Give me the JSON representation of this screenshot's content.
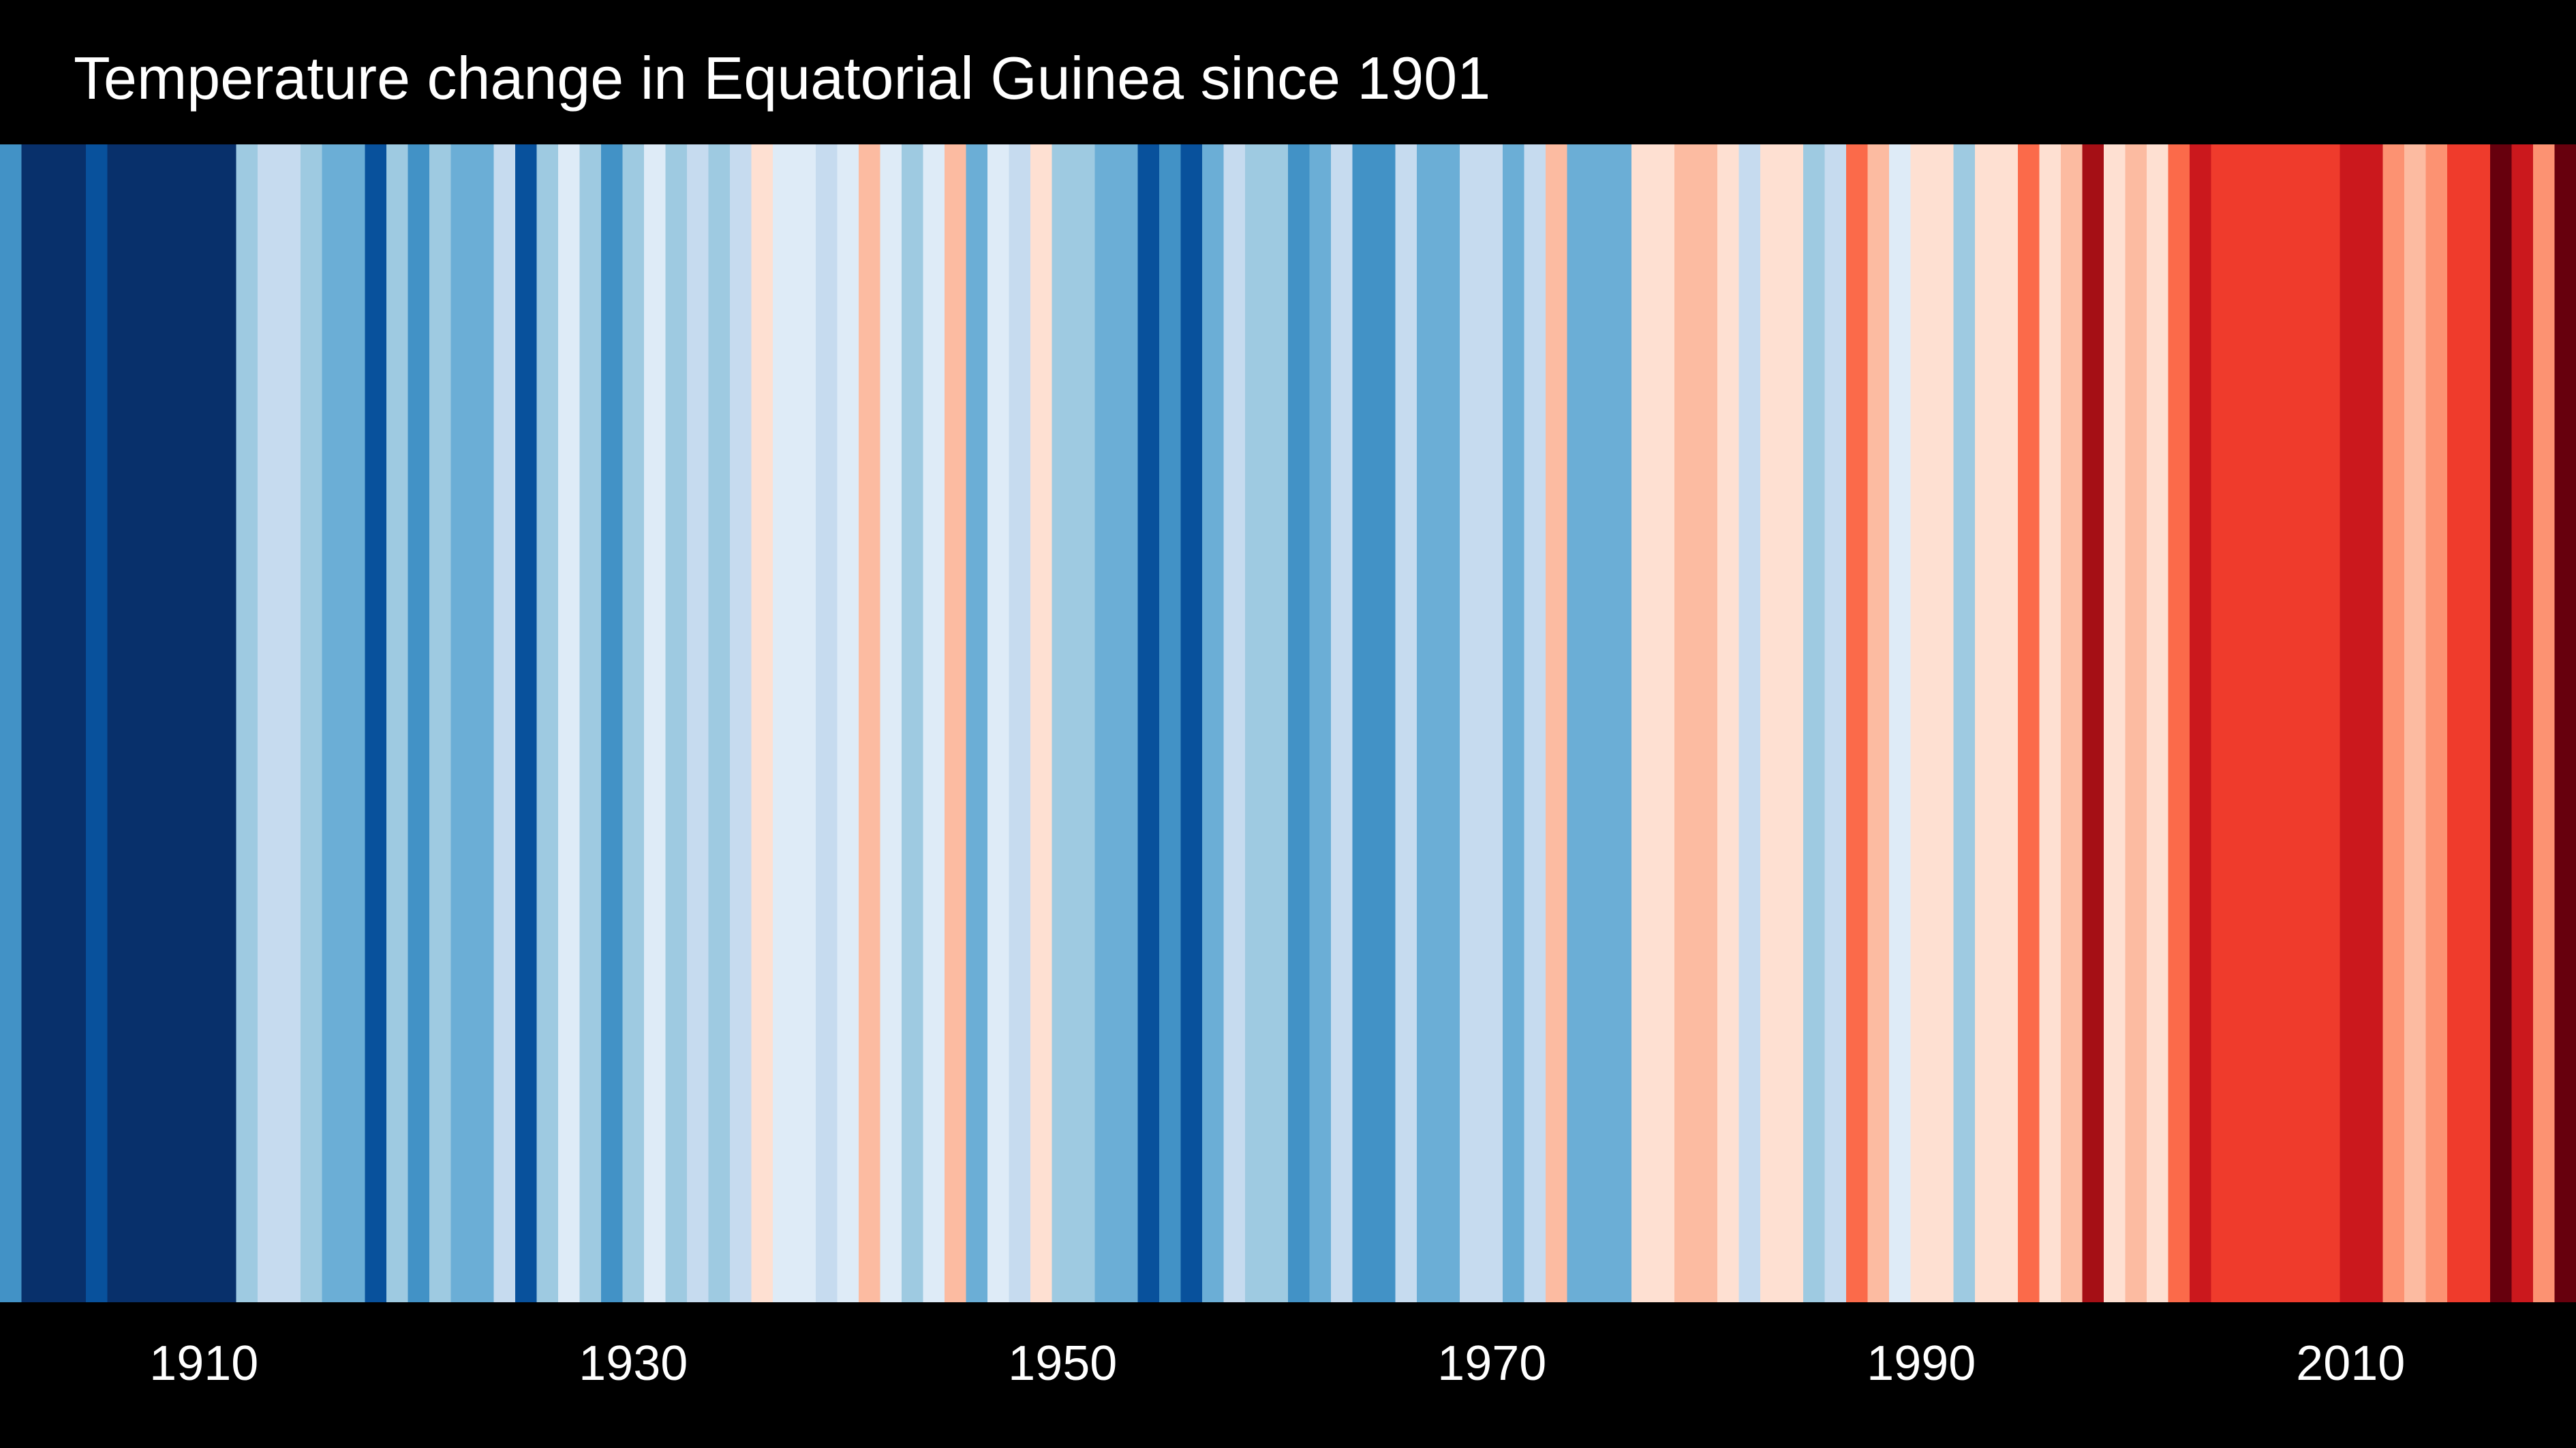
{
  "chart_data": {
    "type": "stripes",
    "title": "Temperature change in Equatorial Guinea since 1901",
    "x": [
      1901,
      1902,
      1903,
      1904,
      1905,
      1906,
      1907,
      1908,
      1909,
      1910,
      1911,
      1912,
      1913,
      1914,
      1915,
      1916,
      1917,
      1918,
      1919,
      1920,
      1921,
      1922,
      1923,
      1924,
      1925,
      1926,
      1927,
      1928,
      1929,
      1930,
      1931,
      1932,
      1933,
      1934,
      1935,
      1936,
      1937,
      1938,
      1939,
      1940,
      1941,
      1942,
      1943,
      1944,
      1945,
      1946,
      1947,
      1948,
      1949,
      1950,
      1951,
      1952,
      1953,
      1954,
      1955,
      1956,
      1957,
      1958,
      1959,
      1960,
      1961,
      1962,
      1963,
      1964,
      1965,
      1966,
      1967,
      1968,
      1969,
      1970,
      1971,
      1972,
      1973,
      1974,
      1975,
      1976,
      1977,
      1978,
      1979,
      1980,
      1981,
      1982,
      1983,
      1984,
      1985,
      1986,
      1987,
      1988,
      1989,
      1990,
      1991,
      1992,
      1993,
      1994,
      1995,
      1996,
      1997,
      1998,
      1999,
      2000,
      2001,
      2002,
      2003,
      2004,
      2005,
      2006,
      2007,
      2008,
      2009,
      2010,
      2011,
      2012,
      2013,
      2014,
      2015,
      2016,
      2017,
      2018,
      2019,
      2020
    ],
    "colors": [
      "#4292c6",
      "#08306b",
      "#08306b",
      "#08306b",
      "#08519c",
      "#08306b",
      "#08306b",
      "#08306b",
      "#08306b",
      "#08306b",
      "#08306b",
      "#9ecae1",
      "#c6dbef",
      "#c6dbef",
      "#9ecae1",
      "#6baed6",
      "#6baed6",
      "#08519c",
      "#9ecae1",
      "#4292c6",
      "#9ecae1",
      "#6baed6",
      "#6baed6",
      "#c6dbef",
      "#08519c",
      "#9ecae1",
      "#deebf7",
      "#9ecae1",
      "#4292c6",
      "#9ecae1",
      "#deebf7",
      "#9ecae1",
      "#c6dbef",
      "#9ecae1",
      "#c6dbef",
      "#fee0d2",
      "#deebf7",
      "#deebf7",
      "#c6dbef",
      "#deebf7",
      "#fcbba1",
      "#deebf7",
      "#9ecae1",
      "#deebf7",
      "#fcbba1",
      "#6baed6",
      "#deebf7",
      "#c6dbef",
      "#fee0d2",
      "#9ecae1",
      "#9ecae1",
      "#6baed6",
      "#6baed6",
      "#08519c",
      "#4292c6",
      "#08519c",
      "#6baed6",
      "#c6dbef",
      "#9ecae1",
      "#9ecae1",
      "#4292c6",
      "#6baed6",
      "#c6dbef",
      "#4292c6",
      "#4292c6",
      "#c6dbef",
      "#6baed6",
      "#6baed6",
      "#c6dbef",
      "#c6dbef",
      "#6baed6",
      "#c6dbef",
      "#fcbba1",
      "#6baed6",
      "#6baed6",
      "#6baed6",
      "#fee0d2",
      "#fee0d2",
      "#fcbba1",
      "#fcbba1",
      "#fee0d2",
      "#c6dbef",
      "#fee0d2",
      "#fee0d2",
      "#9ecae1",
      "#c6dbef",
      "#fb6a4a",
      "#fcbba1",
      "#deebf7",
      "#fee0d2",
      "#fee0d2",
      "#9ecae1",
      "#fee0d2",
      "#fee0d2",
      "#fb6a4a",
      "#fee0d2",
      "#fcbba1",
      "#a50f15",
      "#fee0d2",
      "#fcbba1",
      "#fee0d2",
      "#fb6a4a",
      "#cb181d",
      "#ef3b2c",
      "#ef3b2c",
      "#ef3b2c",
      "#ef3b2c",
      "#ef3b2c",
      "#ef3b2c",
      "#cb181d",
      "#cb181d",
      "#fc9272",
      "#fcbba1",
      "#fc9272",
      "#ef3b2c",
      "#ef3b2c",
      "#67000d",
      "#cb181d",
      "#fc9272",
      "#67000d"
    ],
    "xlim": [
      1900.5,
      2020.5
    ],
    "xticks": [
      1910,
      1930,
      1950,
      1970,
      1990,
      2010
    ]
  }
}
